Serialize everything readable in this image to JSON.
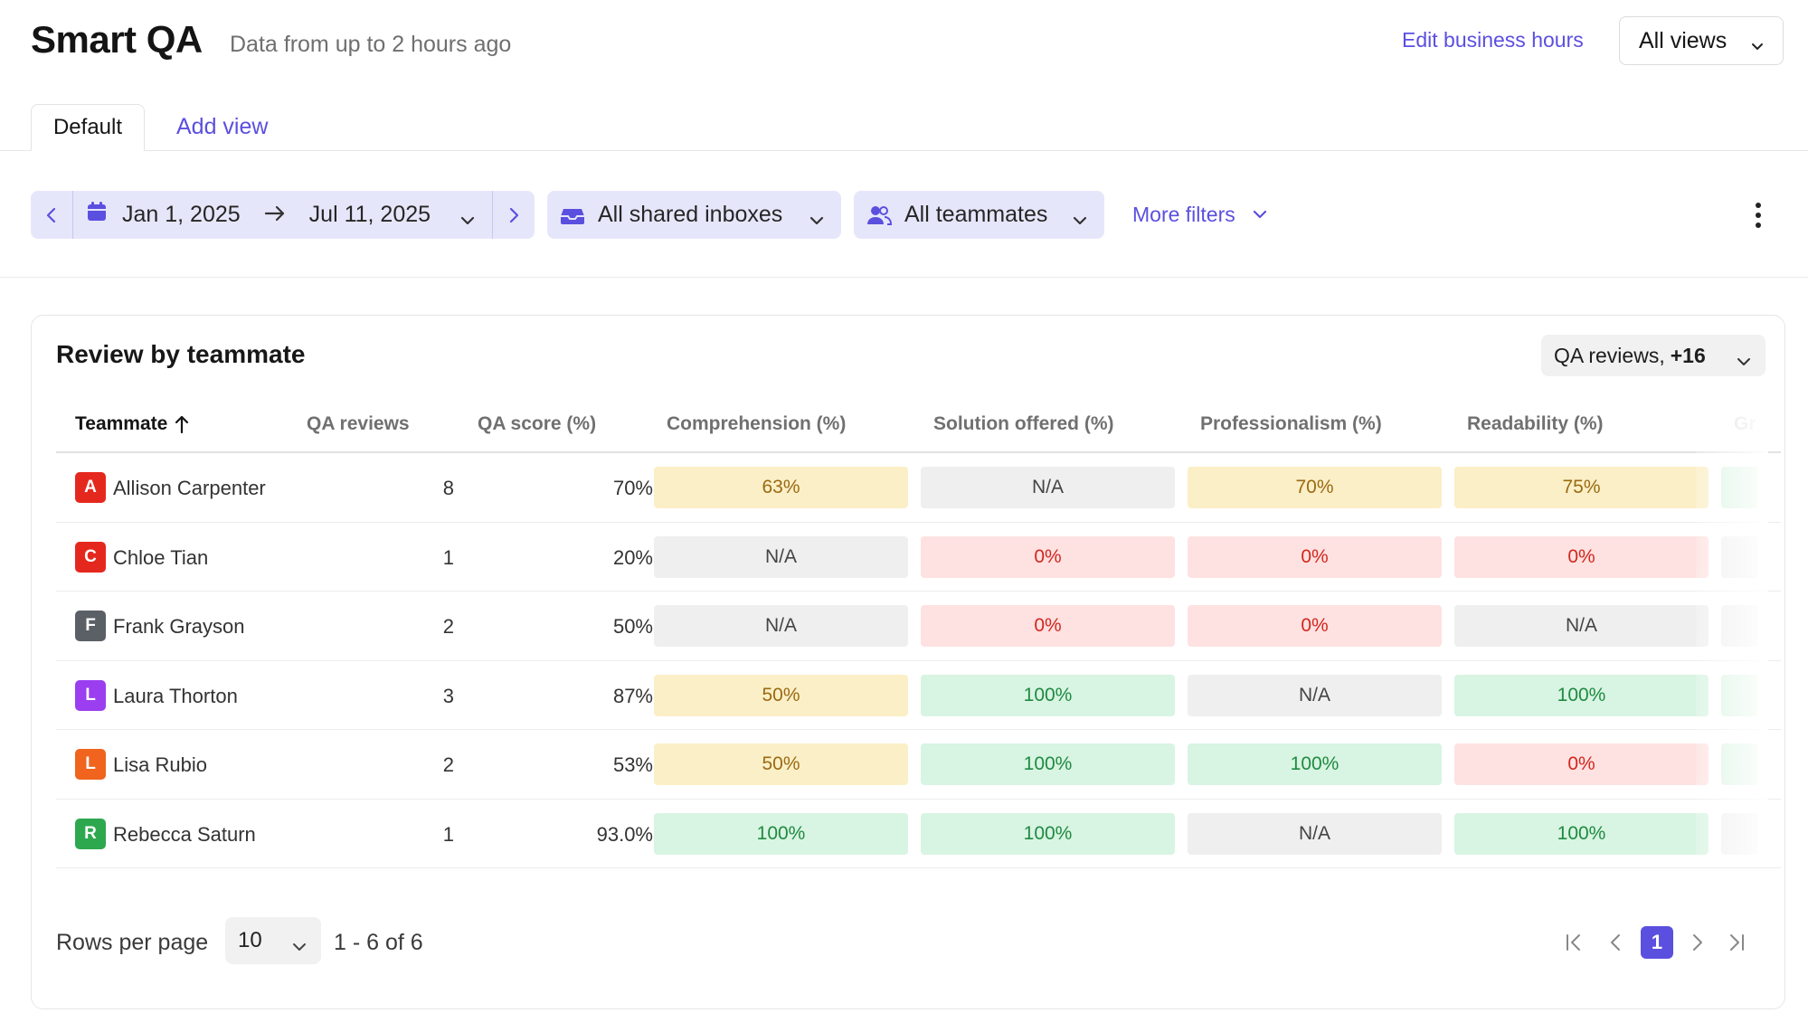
{
  "header": {
    "title": "Smart QA",
    "subtitle": "Data from up to 2 hours ago",
    "edit_hours_label": "Edit business hours",
    "views_dropdown": "All views"
  },
  "tabs": [
    {
      "label": "Default",
      "active": true
    },
    {
      "label": "Add view",
      "active": false
    }
  ],
  "filters": {
    "date_start": "Jan 1, 2025",
    "date_end": "Jul 11, 2025",
    "inboxes": "All shared inboxes",
    "teammates": "All teammates",
    "more_filters": "More filters"
  },
  "card": {
    "title": "Review by teammate",
    "metrics_dropdown": "QA reviews,",
    "metrics_extra": "+16"
  },
  "table": {
    "columns": [
      "Teammate",
      "QA reviews",
      "QA score (%)",
      "Comprehension (%)",
      "Solution offered (%)",
      "Professionalism (%)",
      "Readability (%)",
      "Gr"
    ],
    "rows": [
      {
        "initial": "A",
        "avatar_color": "#e5281e",
        "name": "Allison Carpenter",
        "reviews": "8",
        "score": "70%",
        "cells": [
          "63%",
          "N/A",
          "70%",
          "75%"
        ],
        "tones": [
          "yellow",
          "gray",
          "yellow",
          "yellow",
          "green"
        ]
      },
      {
        "initial": "C",
        "avatar_color": "#e5281e",
        "name": "Chloe Tian",
        "reviews": "1",
        "score": "20%",
        "cells": [
          "N/A",
          "0%",
          "0%",
          "0%"
        ],
        "tones": [
          "gray",
          "red",
          "red",
          "red",
          "gray"
        ]
      },
      {
        "initial": "F",
        "avatar_color": "#5b5f66",
        "name": "Frank Grayson",
        "reviews": "2",
        "score": "50%",
        "cells": [
          "N/A",
          "0%",
          "0%",
          "N/A"
        ],
        "tones": [
          "gray",
          "red",
          "red",
          "gray",
          "gray"
        ]
      },
      {
        "initial": "L",
        "avatar_color": "#9b3ef0",
        "name": "Laura Thorton",
        "reviews": "3",
        "score": "87%",
        "cells": [
          "50%",
          "100%",
          "N/A",
          "100%"
        ],
        "tones": [
          "yellow",
          "green",
          "gray",
          "green",
          "green"
        ]
      },
      {
        "initial": "L",
        "avatar_color": "#f0641e",
        "name": "Lisa Rubio",
        "reviews": "2",
        "score": "53%",
        "cells": [
          "50%",
          "100%",
          "100%",
          "0%"
        ],
        "tones": [
          "yellow",
          "green",
          "green",
          "red",
          "green"
        ]
      },
      {
        "initial": "R",
        "avatar_color": "#2ea84f",
        "name": "Rebecca Saturn",
        "reviews": "1",
        "score": "93.0%",
        "cells": [
          "100%",
          "100%",
          "N/A",
          "100%"
        ],
        "tones": [
          "green",
          "green",
          "gray",
          "green",
          "gray"
        ]
      }
    ]
  },
  "footer": {
    "rows_per_page_label": "Rows per page",
    "rows_per_page_value": "10",
    "range_label": "1 - 6 of 6",
    "current_page": "1"
  },
  "colors": {
    "accent": "#5b4fe0",
    "yellow_bg": "#fbefc7",
    "yellow_fg": "#9a6a12",
    "gray_bg": "#efefef",
    "gray_fg": "#444444",
    "red_bg": "#fde2e1",
    "red_fg": "#d3271e",
    "green_bg": "#d8f4e2",
    "green_fg": "#1f8a41"
  }
}
